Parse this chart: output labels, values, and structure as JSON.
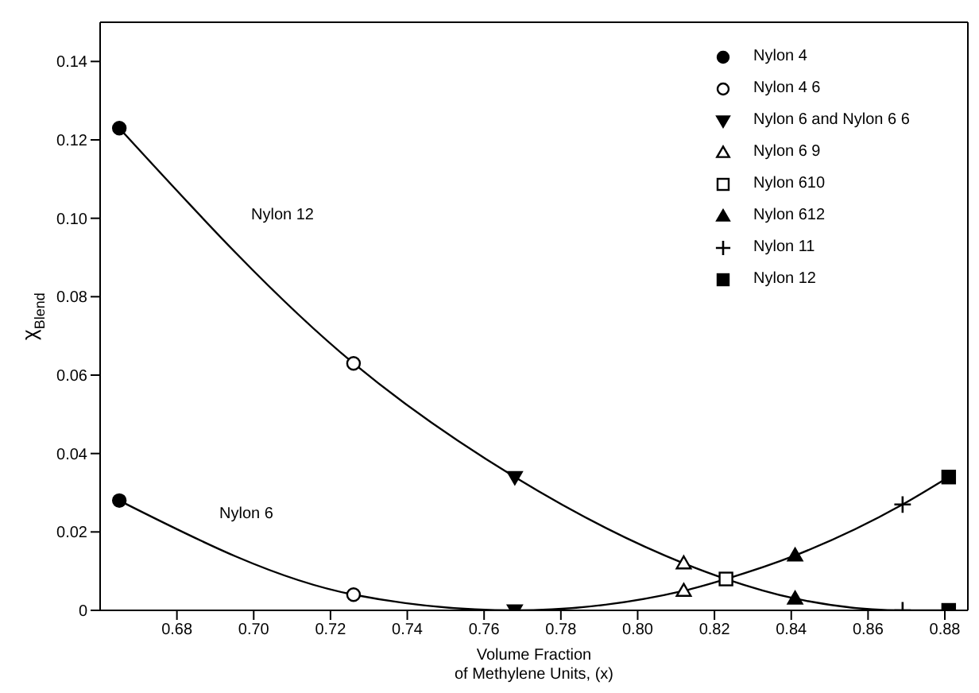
{
  "chart_data": {
    "type": "scatter",
    "xlabel": "Volume Fraction\nof Methylene Units, (x)",
    "ylabel": "χ$_{Blend}$",
    "xlim": [
      0.66,
      0.886
    ],
    "ylim": [
      0,
      0.15
    ],
    "xticks": [
      0.68,
      {
        "value": 0.7,
        "label": "0.70"
      },
      0.72,
      0.74,
      0.76,
      0.78,
      {
        "value": 0.8,
        "label": "0.80"
      },
      0.82,
      0.84,
      0.86,
      0.88
    ],
    "yticks": [
      0,
      0.02,
      0.04,
      0.06,
      0.08,
      {
        "value": 0.1,
        "label": "0.10"
      },
      0.12,
      0.14
    ],
    "legend": "top right",
    "annotations": [
      "Nylon 12",
      "Nylon 6"
    ],
    "series": [
      {
        "type": "line",
        "marker": "none",
        "color": "#000000",
        "x": [
          0.665,
          0.726,
          0.768,
          0.812,
          0.823,
          0.841,
          0.869,
          0.881
        ],
        "values": [
          0.123,
          0.063,
          0.034,
          0.012,
          0.008,
          0.003,
          0,
          0
        ]
      },
      {
        "type": "line",
        "marker": "none",
        "color": "#000000",
        "x": [
          0.665,
          0.726,
          0.768,
          0.812,
          0.823,
          0.841,
          0.869,
          0.881
        ],
        "values": [
          0.028,
          0.004,
          0,
          0.005,
          0.008,
          0.014,
          0.027,
          0.034
        ]
      },
      {
        "name": "Nylon 4",
        "marker": "circle",
        "color": "#000000",
        "x": [
          0.665,
          0.665
        ],
        "values": [
          0.123,
          0.028
        ]
      },
      {
        "name": "Nylon 4 6",
        "marker": "circle-open",
        "color": "#000000",
        "x": [
          0.726,
          0.726
        ],
        "values": [
          0.063,
          0.004
        ]
      },
      {
        "name": "Nylon 6 and Nylon 6 6",
        "marker": "triangle-down",
        "color": "#000000",
        "x": [
          0.768,
          0.768
        ],
        "values": [
          0.034,
          0
        ]
      },
      {
        "name": "Nylon 6 9",
        "marker": "triangle-open",
        "color": "#000000",
        "x": [
          0.812,
          0.812
        ],
        "values": [
          0.012,
          0.005
        ]
      },
      {
        "name": "Nylon 610",
        "marker": "square-open",
        "color": "#000000",
        "x": [
          0.823
        ],
        "values": [
          0.008
        ]
      },
      {
        "name": "Nylon 612",
        "marker": "triangle",
        "color": "#000000",
        "x": [
          0.841,
          0.841
        ],
        "values": [
          0.014,
          0.003
        ]
      },
      {
        "name": "Nylon 11",
        "marker": "cross",
        "color": "#000000",
        "x": [
          0.869,
          0.869
        ],
        "values": [
          0.027,
          0
        ]
      },
      {
        "name": "Nylon 12",
        "marker": "square",
        "color": "#000000",
        "x": [
          0.881,
          0.881
        ],
        "values": [
          0.034,
          0
        ]
      }
    ]
  }
}
